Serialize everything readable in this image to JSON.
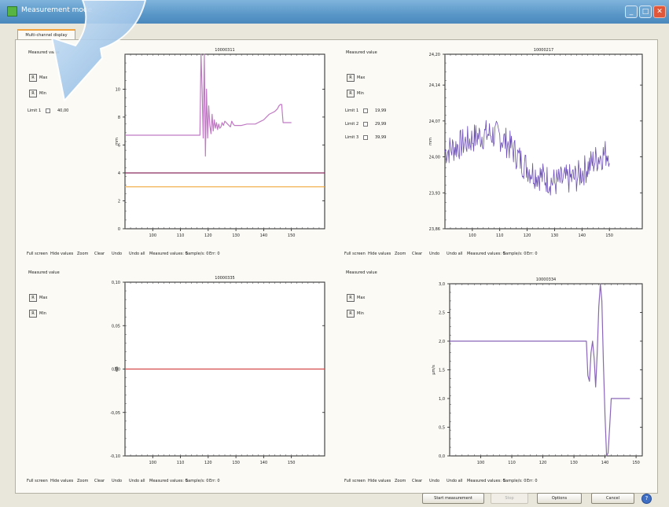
{
  "window": {
    "title": "Measurement mode"
  },
  "tab": {
    "label": "Multi-channel display"
  },
  "footer_items": [
    "Full screen",
    "Hide values",
    "Zoom",
    "Clear",
    "Undo",
    "Undo all",
    "Measured values: 0",
    "Sample/s: 0",
    "Err: 0"
  ],
  "panels": [
    {
      "measured_value_label": "Measured value",
      "max_label": "Max",
      "min_label": "Min",
      "reset_label": "R",
      "limits": [
        {
          "label": "Limit 1",
          "value": "40,00"
        }
      ]
    },
    {
      "measured_value_label": "Measured value",
      "max_label": "Max",
      "min_label": "Min",
      "reset_label": "R",
      "limits": [
        {
          "label": "Limit 1",
          "value": "19,99"
        },
        {
          "label": "Limit 2",
          "value": "29,99"
        },
        {
          "label": "Limit 3",
          "value": "39,99"
        }
      ]
    },
    {
      "measured_value_label": "Measured value",
      "max_label": "Max",
      "min_label": "Min",
      "reset_label": "R",
      "limits": []
    },
    {
      "measured_value_label": "Measured value",
      "max_label": "Max",
      "min_label": "Min",
      "reset_label": "R",
      "limits": []
    }
  ],
  "chart_data": [
    {
      "type": "line",
      "title": "10000311",
      "ylabel": "mm",
      "xlim": [
        90,
        162
      ],
      "ylim": [
        0,
        12.5
      ],
      "xticks": [
        100,
        110,
        120,
        130,
        140,
        150
      ],
      "xtick_labels": [
        "100",
        "110",
        "120",
        "130",
        "140",
        "150"
      ],
      "yticks": [
        0,
        2,
        4,
        6,
        8,
        10
      ],
      "ytick_labels": [
        "0",
        "2",
        "4",
        "6",
        "8",
        "10"
      ],
      "series": [
        {
          "color": "#c07ac4",
          "x": [
            90,
            117,
            117.4,
            117.8,
            118.2,
            118.6,
            119,
            119.4,
            119.8,
            120.2,
            120.6,
            121,
            121.4,
            121.8,
            122.2,
            122.6,
            123,
            123.4,
            123.8,
            124.2,
            124.6,
            125,
            125.5,
            126,
            127,
            128,
            128.5,
            129,
            129.5,
            130,
            132,
            134,
            136,
            137,
            138,
            139,
            140,
            141,
            142,
            143,
            144,
            145,
            145.5,
            146,
            146.5,
            147,
            148,
            150
          ],
          "y": [
            6.7,
            6.7,
            12.5,
            10,
            6.5,
            12.5,
            5.2,
            10,
            6.5,
            8.8,
            7.4,
            6.8,
            8.2,
            7,
            7.8,
            7.2,
            7.6,
            7.1,
            7.5,
            7.2,
            7.3,
            7.6,
            7.4,
            7.7,
            7.5,
            7.3,
            7.7,
            7.5,
            7.4,
            7.4,
            7.4,
            7.5,
            7.5,
            7.5,
            7.6,
            7.7,
            7.8,
            8,
            8.2,
            8.3,
            8.4,
            8.6,
            8.8,
            8.9,
            8.9,
            7.6,
            7.6,
            7.6
          ]
        },
        {
          "color": "#8a2b5f",
          "x": [
            90,
            162
          ],
          "y": [
            4,
            4
          ]
        },
        {
          "color": "#f0a93e",
          "x": [
            90,
            162
          ],
          "y": [
            3,
            3
          ]
        }
      ]
    },
    {
      "type": "line",
      "title": "10000217",
      "ylabel": "mm",
      "xlim": [
        90,
        162
      ],
      "ylim": [
        23.86,
        24.2
      ],
      "xticks": [
        100,
        110,
        120,
        130,
        140,
        150
      ],
      "xtick_labels": [
        "100",
        "110",
        "120",
        "130",
        "140",
        "150"
      ],
      "yticks": [
        23.86,
        23.93,
        24,
        24.07,
        24.14,
        24.2
      ],
      "ytick_labels": [
        "23,86",
        "23,93",
        "24,00",
        "24,07",
        "24,14",
        "24,20"
      ],
      "series": [
        {
          "color": "#6b4fb4",
          "x": [
            90,
            94,
            98,
            102,
            106,
            110,
            114,
            118,
            122,
            126,
            130,
            134,
            138,
            142,
            146,
            150
          ],
          "y": [
            24.01,
            24.02,
            24.03,
            24.04,
            24.045,
            24.04,
            24.02,
            23.99,
            23.97,
            23.96,
            23.95,
            23.955,
            23.96,
            23.98,
            24,
            24.01
          ]
        }
      ]
    },
    {
      "type": "line",
      "title": "10000335",
      "ylabel": "dB",
      "xlim": [
        90,
        162
      ],
      "ylim": [
        -0.1,
        0.1
      ],
      "xticks": [
        100,
        110,
        120,
        130,
        140,
        150
      ],
      "xtick_labels": [
        "100",
        "110",
        "120",
        "130",
        "140",
        "150"
      ],
      "yticks": [
        -0.1,
        -0.05,
        0,
        0.05,
        0.1
      ],
      "ytick_labels": [
        "-0,10",
        "-0,05",
        "0,00",
        "0,05",
        "0,10"
      ],
      "series": [
        {
          "color": "#d44a4a",
          "x": [
            90,
            162
          ],
          "y": [
            0,
            0
          ]
        }
      ]
    },
    {
      "type": "line",
      "title": "10000334",
      "ylabel": "µm/s",
      "xlim": [
        90,
        152
      ],
      "ylim": [
        0,
        3
      ],
      "xticks": [
        100,
        110,
        120,
        130,
        140,
        150
      ],
      "xtick_labels": [
        "100",
        "110",
        "120",
        "130",
        "140",
        "150"
      ],
      "yticks": [
        0,
        0.5,
        1,
        1.5,
        2,
        2.5,
        3
      ],
      "ytick_labels": [
        "0,0",
        "0,5",
        "1,0",
        "1,5",
        "2,0",
        "2,5",
        "3,0"
      ],
      "series": [
        {
          "color": "#8a66b8",
          "x": [
            90,
            134,
            134.5,
            135,
            135.5,
            136,
            136.5,
            137,
            137.5,
            138,
            138.5,
            139,
            139.5,
            140,
            140.5,
            141,
            141.5,
            142,
            143,
            145,
            148
          ],
          "y": [
            2,
            2,
            1.4,
            1.3,
            1.8,
            2.0,
            1.7,
            1.2,
            1.8,
            2.6,
            3.0,
            2.7,
            1.6,
            0.7,
            0,
            0.05,
            0.5,
            1.0,
            1.0,
            1.0,
            1.0
          ]
        }
      ]
    }
  ],
  "buttons": {
    "start": "Start measurement",
    "stop": "Stop",
    "options": "Options",
    "cancel": "Cancel",
    "help": "?"
  }
}
